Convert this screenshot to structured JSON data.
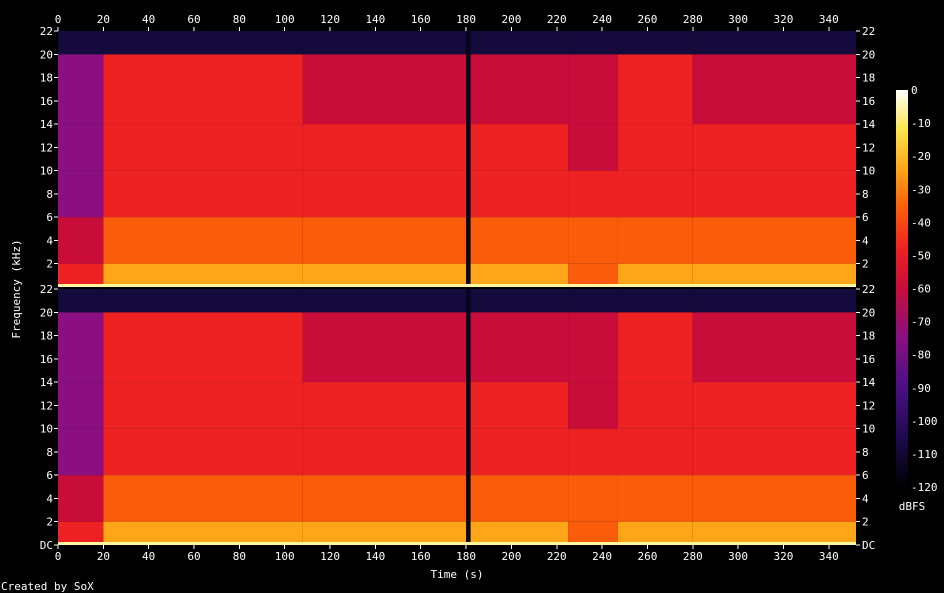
{
  "chart_data": {
    "type": "heatmap",
    "title": "",
    "xlabel": "Time (s)",
    "ylabel": "Frequency (kHz)",
    "xlim": [
      0,
      352
    ],
    "ylim": [
      0,
      22
    ],
    "x_ticks": [
      0,
      20,
      40,
      60,
      80,
      100,
      120,
      140,
      160,
      180,
      200,
      220,
      240,
      260,
      280,
      300,
      320,
      340
    ],
    "y_ticks": [
      {
        "value": 0,
        "label": "DC"
      },
      {
        "value": 2,
        "label": "2"
      },
      {
        "value": 4,
        "label": "4"
      },
      {
        "value": 6,
        "label": "6"
      },
      {
        "value": 8,
        "label": "8"
      },
      {
        "value": 10,
        "label": "10"
      },
      {
        "value": 12,
        "label": "12"
      },
      {
        "value": 14,
        "label": "14"
      },
      {
        "value": 16,
        "label": "16"
      },
      {
        "value": 18,
        "label": "18"
      },
      {
        "value": 20,
        "label": "20"
      },
      {
        "value": 22,
        "label": "22"
      }
    ],
    "channels": 2,
    "colorbar": {
      "label": "dBFS",
      "ticks": [
        0,
        -10,
        -20,
        -30,
        -40,
        -50,
        -60,
        -70,
        -80,
        -90,
        -100,
        -110,
        -120
      ],
      "range": [
        -120,
        0
      ],
      "colors": [
        "#000000",
        "#1c0b4c",
        "#4a0f86",
        "#8b0f80",
        "#c80d3a",
        "#ee2222",
        "#fb5c0a",
        "#fea518",
        "#fde44c",
        "#ffffff"
      ]
    },
    "segments": [
      {
        "start": 0,
        "end": 20,
        "cutoff_khz": 20,
        "level_db": -78
      },
      {
        "start": 20,
        "end": 108,
        "cutoff_khz": 20,
        "level_db": -52
      },
      {
        "start": 108,
        "end": 180,
        "cutoff_khz": 20,
        "level_db": -54
      },
      {
        "start": 182,
        "end": 225,
        "cutoff_khz": 20,
        "level_db": -53
      },
      {
        "start": 225,
        "end": 247,
        "cutoff_khz": 20,
        "level_db": -58
      },
      {
        "start": 247,
        "end": 280,
        "cutoff_khz": 20,
        "level_db": -51
      },
      {
        "start": 280,
        "end": 352,
        "cutoff_khz": 20,
        "level_db": -53
      }
    ],
    "annotations": {
      "credit": "Created by SoX"
    }
  }
}
